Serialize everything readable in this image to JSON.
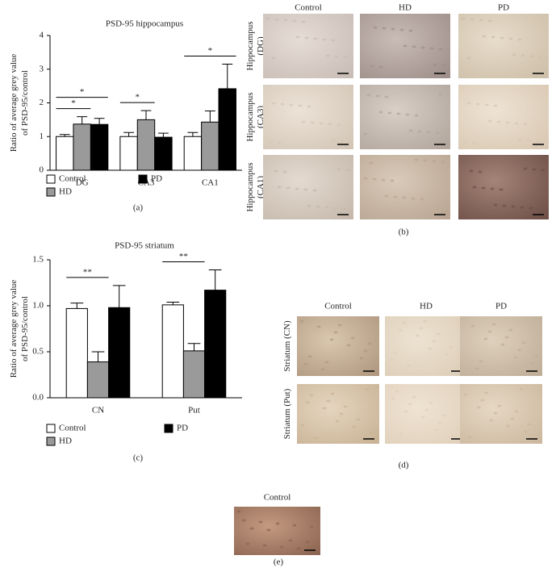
{
  "chart_data": [
    {
      "type": "bar",
      "title": "PSD-95 hippocampus",
      "panel_label": "(a)",
      "ylabel": [
        "Ratio of average grey value",
        "of PSD-95/control"
      ],
      "categories": [
        "DG",
        "CA3",
        "CA1"
      ],
      "series": [
        {
          "name": "Control",
          "color": "#ffffff",
          "values": [
            1,
            1,
            1
          ],
          "errors": [
            0.06,
            0.12,
            0.12
          ]
        },
        {
          "name": "HD",
          "color": "#9a9a9a",
          "values": [
            1.37,
            1.5,
            1.43
          ],
          "errors": [
            0.22,
            0.27,
            0.33
          ]
        },
        {
          "name": "PD",
          "color": "#000000",
          "values": [
            1.36,
            0.98,
            2.42
          ],
          "errors": [
            0.18,
            0.12,
            0.73
          ]
        }
      ],
      "ylim": [
        0,
        4
      ],
      "yticks": [
        0,
        1,
        2,
        3,
        4
      ],
      "annotations": [
        {
          "text": "*",
          "category": "DG",
          "between": [
            "Control",
            "HD"
          ]
        },
        {
          "text": "*",
          "category": "DG",
          "between": [
            "Control",
            "PD"
          ]
        },
        {
          "text": "*",
          "category": "CA3",
          "between": [
            "Control",
            "HD"
          ]
        },
        {
          "text": "*",
          "category": "CA1",
          "between": [
            "Control",
            "PD"
          ]
        }
      ]
    },
    {
      "type": "bar",
      "title": "PSD-95 striatum",
      "panel_label": "(c)",
      "ylabel": [
        "Ratio of average grey value",
        "of PSD-95/control"
      ],
      "categories": [
        "CN",
        "Put"
      ],
      "series": [
        {
          "name": "Control",
          "color": "#ffffff",
          "values": [
            0.97,
            1.01
          ],
          "errors": [
            0.06,
            0.03
          ]
        },
        {
          "name": "HD",
          "color": "#9a9a9a",
          "values": [
            0.39,
            0.51
          ],
          "errors": [
            0.11,
            0.08
          ]
        },
        {
          "name": "PD",
          "color": "#000000",
          "values": [
            0.98,
            1.17
          ],
          "errors": [
            0.24,
            0.22
          ]
        }
      ],
      "ylim": [
        0,
        1.5
      ],
      "yticks": [
        {
          "value": 0,
          "label": "0.0"
        },
        {
          "value": 0.5,
          "label": "0.5"
        },
        {
          "value": 1,
          "label": "1.0"
        },
        {
          "value": 1.5,
          "label": "1.5"
        }
      ],
      "annotations": [
        {
          "text": "**",
          "category": "CN",
          "between": [
            "Control",
            "HD"
          ]
        },
        {
          "text": "**",
          "category": "Put",
          "between": [
            "Control",
            "HD"
          ]
        }
      ]
    }
  ],
  "panels": [
    {
      "label": "(b)",
      "columns": [
        "Control",
        "HD",
        "PD"
      ],
      "rows": [
        [
          "Hippocampus",
          "(DG)"
        ],
        [
          "Hippocampus",
          "(CA3)"
        ],
        [
          "Hippocampus",
          "(CA1)"
        ]
      ]
    },
    {
      "label": "(d)",
      "columns": [
        "Control",
        "HD",
        "PD"
      ],
      "rows": [
        [
          "Striatum (CN)"
        ],
        [
          "Striatum (Put)"
        ]
      ]
    },
    {
      "label": "(e)",
      "columns": [
        "Control"
      ],
      "rows": [
        []
      ]
    }
  ]
}
